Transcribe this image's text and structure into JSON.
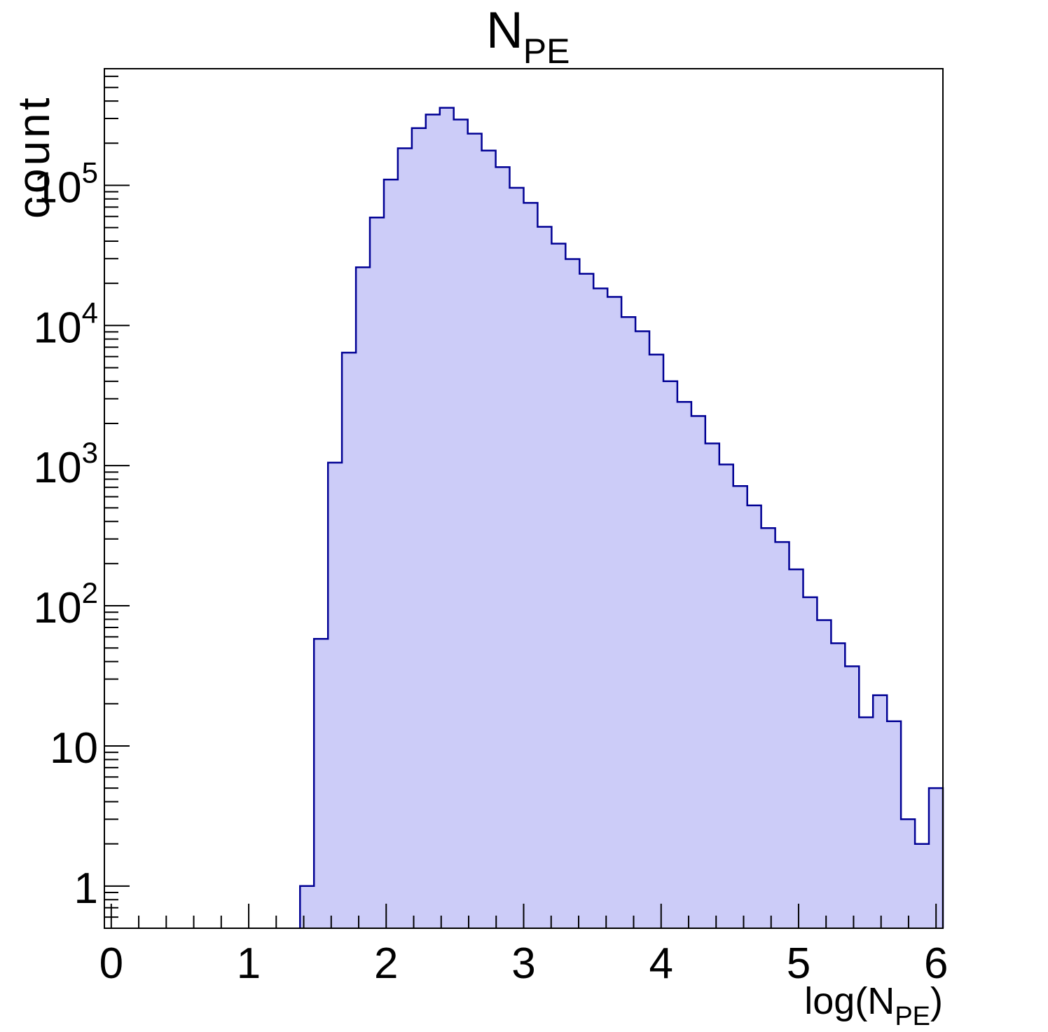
{
  "chart_data": {
    "type": "bar",
    "subtype": "step-histogram-log-y",
    "title_main": "N",
    "title_sub": "PE",
    "ylabel": "count",
    "xlabel_pre": "log(N",
    "xlabel_sub": "PE",
    "xlabel_post": ")",
    "x_min": -0.05,
    "x_max": 6.05,
    "y_min": 0.5,
    "y_max": 680000,
    "y_scale": "log",
    "grid": false,
    "legend": false,
    "n_bins": 60,
    "first_nonzero_bin": 14,
    "bin_width": 0.101667,
    "counts": [
      1,
      58,
      1050,
      6400,
      26000,
      59000,
      110000,
      184000,
      256000,
      320000,
      358000,
      295000,
      234000,
      177000,
      135000,
      96000,
      75000,
      50600,
      38400,
      29800,
      23400,
      18400,
      16000,
      11500,
      9100,
      6200,
      4000,
      2850,
      2260,
      1440,
      1020,
      715,
      520,
      358,
      285,
      182,
      115,
      79,
      54,
      37,
      16,
      23,
      15,
      3,
      2,
      5
    ],
    "x_major_ticks": [
      0,
      1,
      2,
      3,
      4,
      5,
      6
    ],
    "x_tick_labels": [
      "0",
      "1",
      "2",
      "3",
      "4",
      "5",
      "6"
    ],
    "x_minor_step": 0.2,
    "y_major_ticks": [
      1,
      10,
      100,
      1000,
      10000,
      100000
    ],
    "y_tick_labels": [
      {
        "main": "1",
        "exp": ""
      },
      {
        "main": "10",
        "exp": ""
      },
      {
        "main": "10",
        "exp": "2"
      },
      {
        "main": "10",
        "exp": "3"
      },
      {
        "main": "10",
        "exp": "4"
      },
      {
        "main": "10",
        "exp": "5"
      }
    ],
    "fill_color": "#ccccf8",
    "line_color": "#000094",
    "frame_color": "#000000",
    "background_color": "#ffffff"
  }
}
